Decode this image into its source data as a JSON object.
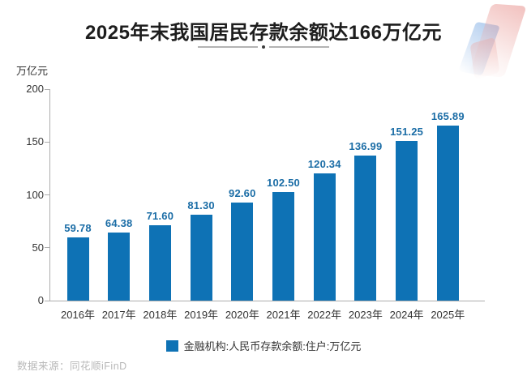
{
  "header": {
    "title": "2025年末我国居民存款余额达166万亿元"
  },
  "chart_data": {
    "type": "bar",
    "title": "2025年末我国居民存款余额达166万亿元",
    "unit_label": "万亿元",
    "categories": [
      "2016年",
      "2017年",
      "2018年",
      "2019年",
      "2020年",
      "2021年",
      "2022年",
      "2023年",
      "2024年",
      "2025年"
    ],
    "values": [
      59.78,
      64.38,
      71.6,
      81.3,
      92.6,
      102.5,
      120.34,
      136.99,
      151.25,
      165.89
    ],
    "value_labels": [
      "59.78",
      "64.38",
      "71.60",
      "81.30",
      "92.60",
      "102.50",
      "120.34",
      "136.99",
      "151.25",
      "165.89"
    ],
    "xlabel": "",
    "ylabel": "万亿元",
    "ylim": [
      0,
      200
    ],
    "yticks": [
      0,
      50,
      100,
      150,
      200
    ],
    "grid": false,
    "legend": {
      "label": "金融机构:人民币存款余额:住户:万亿元",
      "position": "bottom"
    },
    "colors": {
      "bar": "#0e72b5",
      "value_label": "#1b6da6",
      "axis": "#adadad",
      "tick_text": "#333333"
    }
  },
  "icons": {
    "brand_watermark": "tonghuashun-gradient-mark",
    "legend_swatch": "blue-square"
  },
  "footer": {
    "source": "数据来源：同花顺iFinD"
  }
}
